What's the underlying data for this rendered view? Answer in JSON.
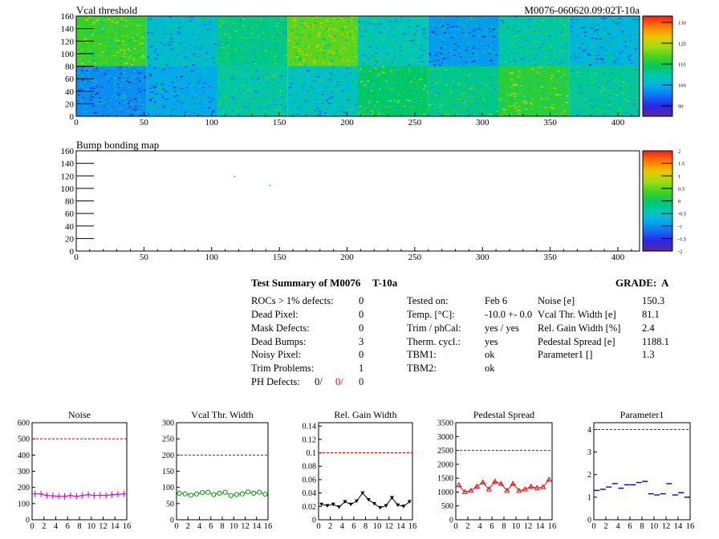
{
  "maps": [
    {
      "title": "Vcal threshold",
      "id_label": "M0076-060620.09:02T-10a",
      "xticks": [
        "0",
        "50",
        "100",
        "150",
        "200",
        "250",
        "300",
        "350",
        "400"
      ],
      "yticks": [
        "0",
        "20",
        "40",
        "60",
        "80",
        "100",
        "120",
        "140",
        "160"
      ],
      "colorbar_ticks": [
        "90",
        "100",
        "110",
        "120",
        "130"
      ]
    },
    {
      "title": "Bump bonding map",
      "xticks": [
        "0",
        "50",
        "100",
        "150",
        "200",
        "250",
        "300",
        "350",
        "400"
      ],
      "yticks": [
        "0",
        "20",
        "40",
        "60",
        "80",
        "100",
        "120",
        "140",
        "160"
      ],
      "colorbar_ticks": [
        "-2",
        "-1.5",
        "-1",
        "-0.5",
        "0",
        "0.5",
        "1",
        "1.5",
        "2"
      ]
    }
  ],
  "summary": {
    "title": "Test Summary of M0076",
    "temp_tag": "T-10a",
    "grade": "GRADE:  A",
    "defects": [
      {
        "label": "ROCs > 1% defects:",
        "value": "0"
      },
      {
        "label": "Dead Pixel:",
        "value": "0"
      },
      {
        "label": "Mask Defects:",
        "value": "0"
      },
      {
        "label": "Dead Bumps:",
        "value": "3"
      },
      {
        "label": "Noisy Pixel:",
        "value": "0"
      },
      {
        "label": "Trim Problems:",
        "value": "1"
      }
    ],
    "ph_defects": {
      "label": "PH Defects:",
      "v1": "0/",
      "v2": "0/",
      "v3": "0"
    },
    "conditions": [
      {
        "label": "Tested on:",
        "value": "Feb 6"
      },
      {
        "label": "Temp. [°C]:",
        "value": "-10.0 +- 0.0"
      },
      {
        "label": "Trim / phCal:",
        "value": "yes / yes"
      },
      {
        "label": "Therm. cycl.:",
        "value": "yes"
      },
      {
        "label": "TBM1:",
        "value": "ok"
      },
      {
        "label": "TBM2:",
        "value": "ok"
      }
    ],
    "results": [
      {
        "label": "Noise [e]",
        "value": "150.3"
      },
      {
        "label": "Vcal Thr. Width [e]",
        "value": "81.1"
      },
      {
        "label": "Rel. Gain Width [%]",
        "value": "2.4"
      },
      {
        "label": "Pedestal Spread [e]",
        "value": "1188.1"
      },
      {
        "label": "Parameter1 []",
        "value": "1.3"
      }
    ]
  },
  "chart_data": [
    {
      "type": "heatmap",
      "title": "Vcal threshold",
      "xlim": [
        0,
        416
      ],
      "ylim": [
        0,
        160
      ],
      "z_range": [
        85,
        133
      ],
      "roc_mean_bottom_row": [
        97,
        99,
        105,
        103,
        109,
        107,
        112,
        106
      ],
      "roc_mean_top_row": [
        113,
        102,
        107,
        115,
        104,
        98,
        105,
        101
      ]
    },
    {
      "type": "heatmap",
      "title": "Bump bonding map",
      "xlim": [
        0,
        416
      ],
      "ylim": [
        0,
        160
      ],
      "z_range": [
        -2,
        2
      ],
      "points": [
        {
          "x": 117,
          "y": 119
        },
        {
          "x": 143,
          "y": 105
        }
      ]
    },
    {
      "type": "line",
      "title": "Noise",
      "color": "#cc00cc",
      "marker": "cross",
      "xticks": [
        0,
        2,
        4,
        6,
        8,
        10,
        12,
        14,
        16
      ],
      "xlim": [
        0,
        16
      ],
      "yticks": [
        0,
        100,
        200,
        300,
        400,
        500,
        600
      ],
      "ylim": [
        0,
        600
      ],
      "limit": 500,
      "x": [
        0,
        1,
        2,
        3,
        4,
        5,
        6,
        7,
        8,
        9,
        10,
        11,
        12,
        13,
        14,
        15
      ],
      "y": [
        160,
        160,
        150,
        148,
        145,
        145,
        150,
        145,
        150,
        155,
        150,
        152,
        150,
        155,
        158,
        160
      ]
    },
    {
      "type": "line",
      "title": "Vcal Thr. Width",
      "color": "#009900",
      "marker": "circle",
      "xticks": [
        0,
        2,
        4,
        6,
        8,
        10,
        12,
        14,
        16
      ],
      "xlim": [
        0,
        16
      ],
      "yticks": [
        0,
        50,
        100,
        150,
        200,
        250,
        300
      ],
      "ylim": [
        0,
        300
      ],
      "limit": 200,
      "x": [
        0,
        1,
        2,
        3,
        4,
        5,
        6,
        7,
        8,
        9,
        10,
        11,
        12,
        13,
        14,
        15
      ],
      "y": [
        82,
        80,
        76,
        80,
        84,
        85,
        78,
        82,
        85,
        75,
        78,
        80,
        86,
        82,
        85,
        79
      ]
    },
    {
      "type": "line",
      "title": "Rel. Gain Width",
      "color": "#000000",
      "marker": "triangle-down",
      "xticks": [
        0,
        2,
        4,
        6,
        8,
        10,
        12,
        14,
        16
      ],
      "xlim": [
        0,
        16
      ],
      "yticks": [
        0,
        0.02,
        0.04,
        0.06,
        0.08,
        0.1,
        0.12,
        0.14
      ],
      "ylim": [
        0,
        0.145
      ],
      "limit": 0.1,
      "x": [
        0,
        1,
        2,
        3,
        4,
        5,
        6,
        7,
        8,
        9,
        10,
        11,
        12,
        13,
        14,
        15
      ],
      "y": [
        0.023,
        0.021,
        0.023,
        0.019,
        0.027,
        0.023,
        0.028,
        0.04,
        0.03,
        0.024,
        0.018,
        0.021,
        0.033,
        0.022,
        0.02,
        0.027
      ]
    },
    {
      "type": "line",
      "title": "Pedestal Spread",
      "color": "#ff0000",
      "marker": "triangle-up",
      "xticks": [
        0,
        2,
        4,
        6,
        8,
        10,
        12,
        14,
        16
      ],
      "xlim": [
        0,
        16
      ],
      "yticks": [
        0,
        500,
        1000,
        1500,
        2000,
        2500,
        3000,
        3500
      ],
      "ylim": [
        0,
        3500
      ],
      "limit": 2500,
      "x": [
        0,
        1,
        2,
        3,
        4,
        5,
        6,
        7,
        8,
        9,
        10,
        11,
        12,
        13,
        14,
        15
      ],
      "y": [
        1250,
        1000,
        1050,
        1200,
        1350,
        1100,
        1380,
        1300,
        1050,
        1300,
        1050,
        1100,
        1200,
        1150,
        1180,
        1450
      ]
    },
    {
      "type": "scatter",
      "title": "Parameter1",
      "color": "#0000cc",
      "marker": "hbar",
      "xticks": [
        0,
        2,
        4,
        6,
        8,
        10,
        12,
        14,
        16
      ],
      "xlim": [
        0,
        16
      ],
      "yticks": [
        0,
        1,
        2,
        3,
        4
      ],
      "ylim": [
        0,
        4.3
      ],
      "limit": 4,
      "x": [
        0,
        1,
        2,
        3,
        4,
        5,
        6,
        7,
        8,
        9,
        10,
        11,
        12,
        13,
        14,
        15
      ],
      "y": [
        1.3,
        1.35,
        1.45,
        1.6,
        1.4,
        1.55,
        1.55,
        1.65,
        1.7,
        1.15,
        1.1,
        1.15,
        1.6,
        1.1,
        1.2,
        1.0
      ]
    }
  ]
}
